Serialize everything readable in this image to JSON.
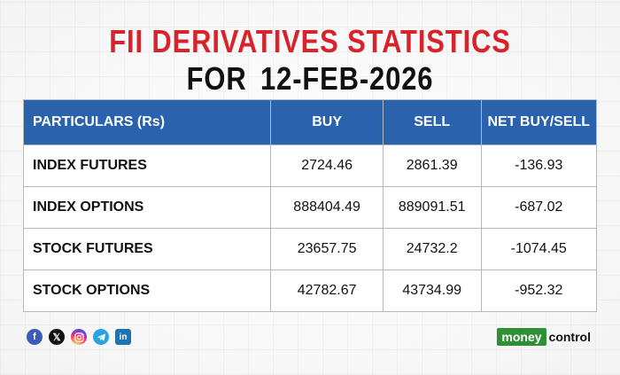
{
  "title": {
    "line1": "FII DERIVATIVES STATISTICS",
    "line2_prefix": "FOR",
    "line2_date": "12-FEB-2026"
  },
  "chart_data": {
    "type": "table",
    "headers": [
      "PARTICULARS (Rs)",
      "BUY",
      "SELL",
      "NET BUY/SELL"
    ],
    "rows": [
      {
        "particular": "INDEX FUTURES",
        "buy": "2724.46",
        "sell": "2861.39",
        "net": "-136.93"
      },
      {
        "particular": "INDEX OPTIONS",
        "buy": "888404.49",
        "sell": "889091.51",
        "net": "-687.02"
      },
      {
        "particular": "STOCK FUTURES",
        "buy": "23657.75",
        "sell": "24732.2",
        "net": "-1074.45"
      },
      {
        "particular": "STOCK OPTIONS",
        "buy": "42782.67",
        "sell": "43734.99",
        "net": "-952.32"
      }
    ]
  },
  "colors": {
    "title_red": "#d8232a",
    "header_blue": "#2b62ae",
    "brand_green": "#2f8f35"
  },
  "footer": {
    "socials": [
      "facebook-icon",
      "x-icon",
      "instagram-icon",
      "telegram-icon",
      "linkedin-icon"
    ],
    "brand_part1": "money",
    "brand_part2": "control"
  }
}
